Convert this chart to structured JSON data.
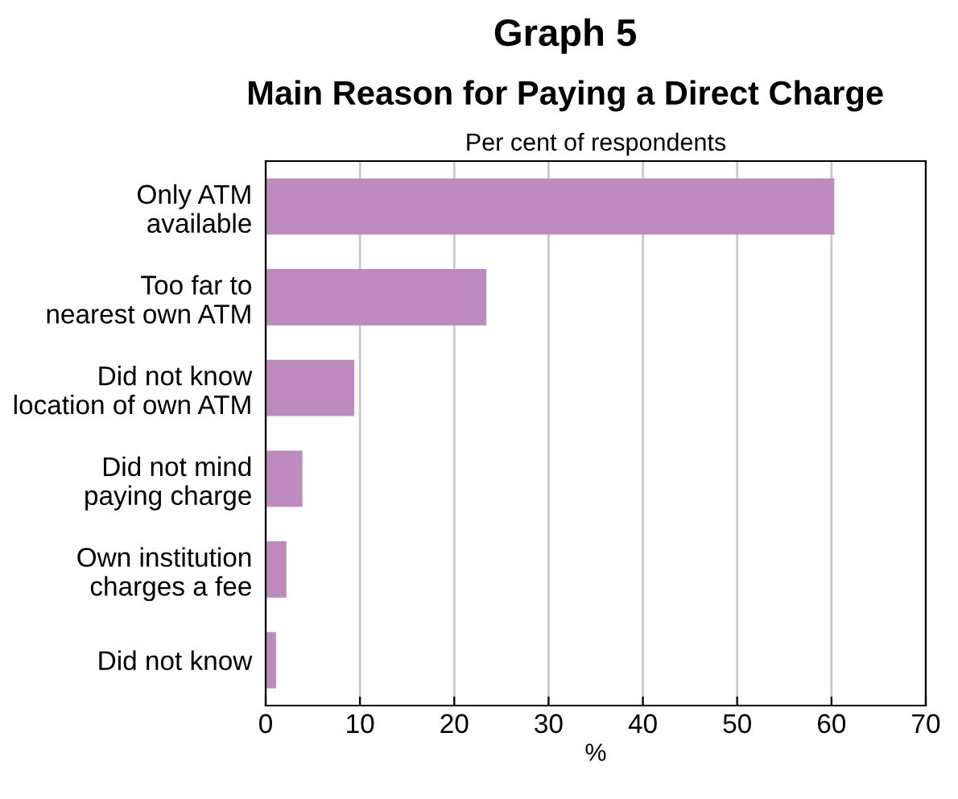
{
  "chart_data": {
    "type": "bar",
    "orientation": "horizontal",
    "title": "Graph 5",
    "subtitle": "Main Reason for Paying a Direct Charge",
    "annotations": [
      "Per cent of respondents"
    ],
    "xlabel": "%",
    "categories": [
      "Only ATM\navailable",
      "Too far to\nnearest own ATM",
      "Did not know\nlocation of own ATM",
      "Did not mind\npaying charge",
      "Own institution\ncharges a fee",
      "Did not know"
    ],
    "values": [
      60.3,
      23.4,
      9.4,
      3.9,
      2.2,
      1.1
    ],
    "color": "#bd8bbe",
    "xlim": [
      0,
      70
    ],
    "xticks": [
      0,
      10,
      20,
      30,
      40,
      50,
      60,
      70
    ],
    "grid": "x"
  }
}
